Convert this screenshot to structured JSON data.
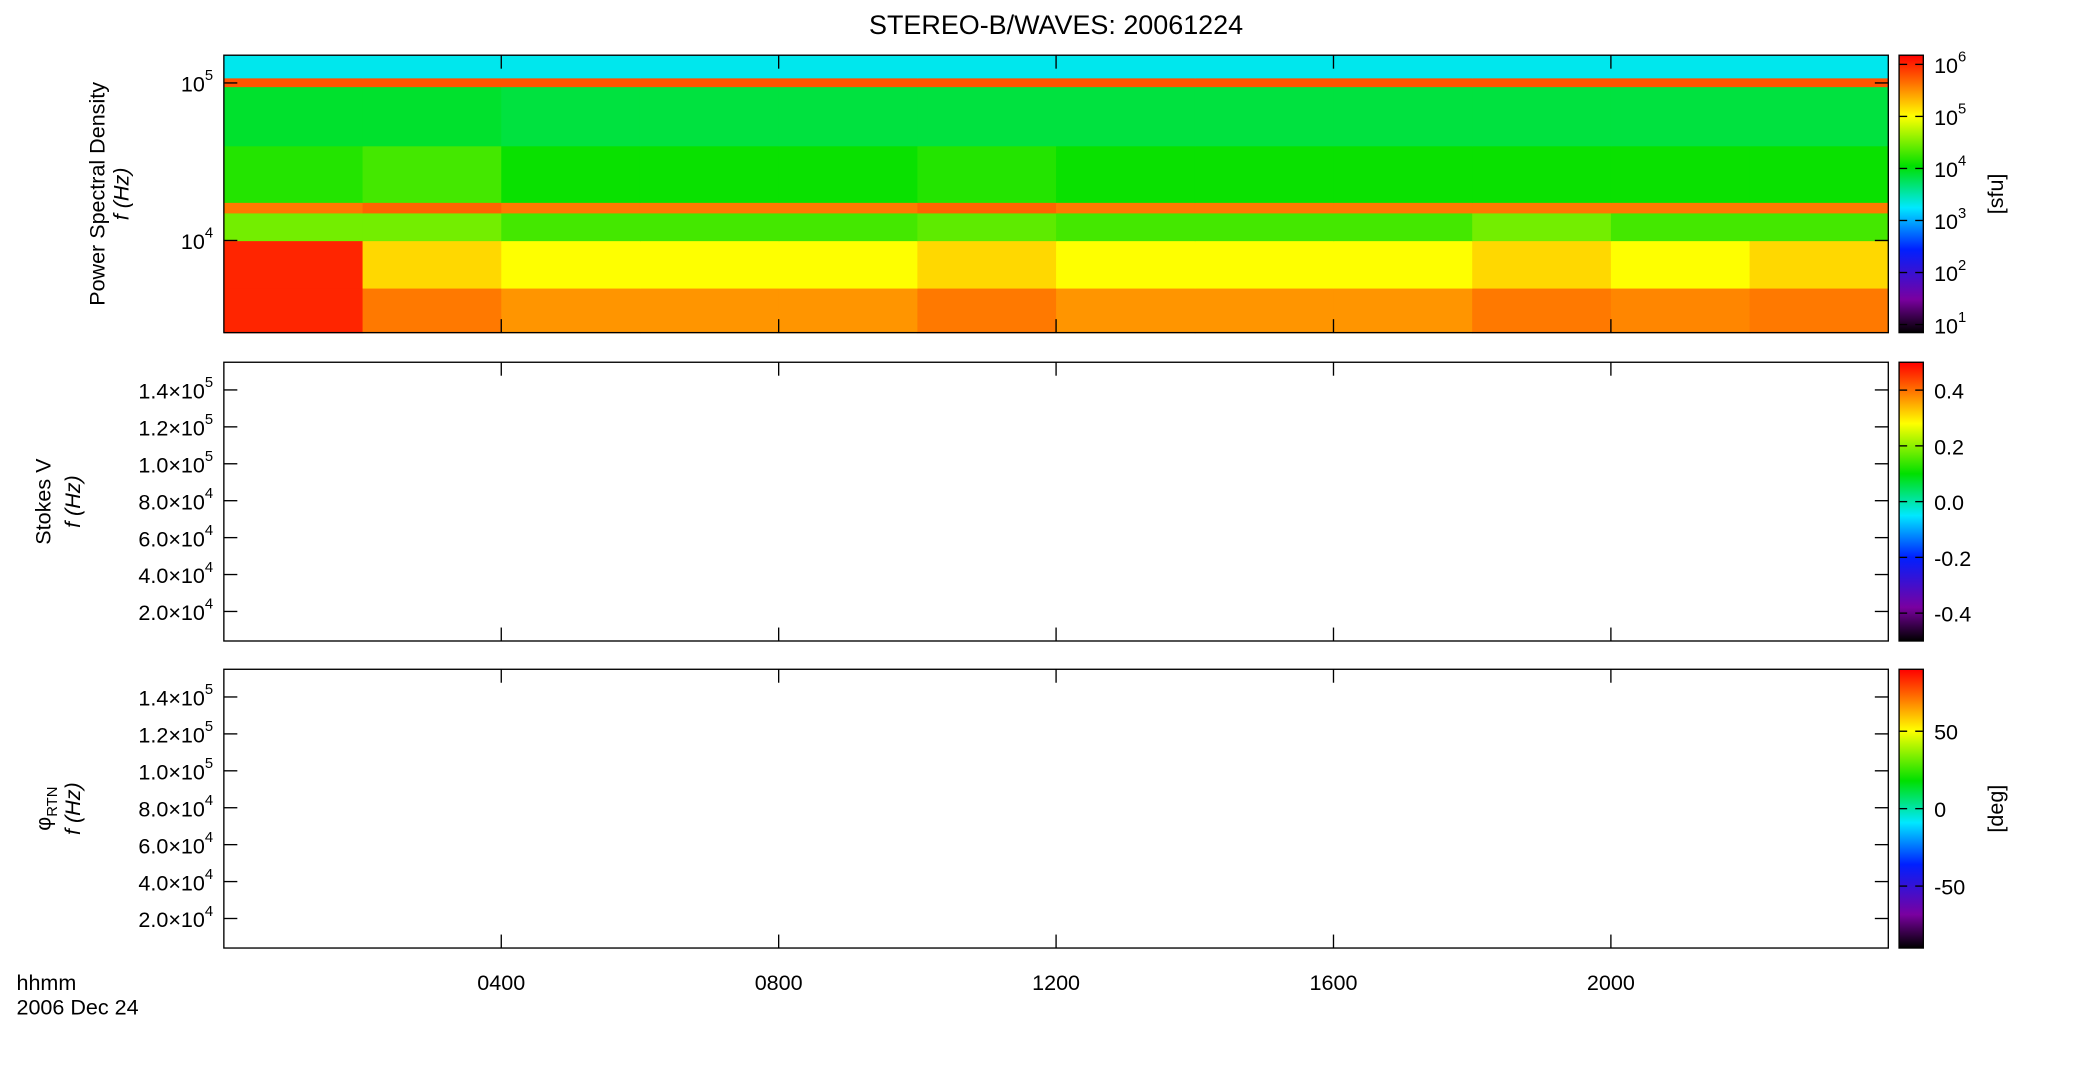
{
  "title": "STEREO-B/WAVES: 20061224",
  "x_label": "hhmm",
  "date": "2006 Dec 24",
  "chart_data": [
    {
      "type": "heatmap",
      "y_label": "Power Spectral Density",
      "y_sublabel": "f (Hz)",
      "ylog": true,
      "ylim": [
        2600,
        150000
      ],
      "yticks": [
        {
          "value": 10000,
          "label": "10^4"
        },
        {
          "value": 100000,
          "label": "10^5"
        }
      ],
      "xlim": [
        0,
        24
      ],
      "xticks": [
        4,
        8,
        12,
        16,
        20
      ],
      "x_bins": [
        0,
        2,
        4,
        6,
        8,
        10,
        12,
        14,
        16,
        18,
        20,
        22,
        24
      ],
      "y_bins": [
        2600,
        5000,
        10000,
        15000,
        17500,
        40000,
        95000,
        108000,
        150000
      ],
      "values": [
        [
          1000000,
          400000,
          300000,
          300000,
          300000,
          400000,
          300000,
          300000,
          300000,
          400000,
          350000,
          400000
        ],
        [
          1000000,
          150000,
          100000,
          100000,
          100000,
          150000,
          100000,
          100000,
          100000,
          150000,
          100000,
          150000
        ],
        [
          30000,
          30000,
          20000,
          20000,
          20000,
          25000,
          20000,
          20000,
          20000,
          30000,
          20000,
          20000
        ],
        [
          400000,
          500000,
          400000,
          400000,
          400000,
          500000,
          400000,
          400000,
          400000,
          400000,
          400000,
          400000
        ],
        [
          15000,
          20000,
          12000,
          12000,
          12000,
          15000,
          12000,
          12000,
          12000,
          12000,
          12000,
          12000
        ],
        [
          8000,
          8000,
          7000,
          7000,
          7000,
          7000,
          7000,
          7000,
          7000,
          7000,
          7000,
          7000
        ],
        [
          600000,
          600000,
          600000,
          600000,
          600000,
          600000,
          600000,
          600000,
          600000,
          600000,
          600000,
          600000
        ],
        [
          2000,
          2000,
          2000,
          2000,
          2000,
          2000,
          2000,
          2000,
          2000,
          2000,
          2000,
          2000
        ]
      ],
      "zlog": true,
      "zlim": [
        7,
        1500000
      ],
      "zticks": [
        {
          "value": 10,
          "label": "10^1"
        },
        {
          "value": 100,
          "label": "10^2"
        },
        {
          "value": 1000,
          "label": "10^3"
        },
        {
          "value": 10000,
          "label": "10^4"
        },
        {
          "value": 100000,
          "label": "10^5"
        },
        {
          "value": 1000000,
          "label": "10^6"
        }
      ],
      "z_label": "[sfu]"
    },
    {
      "type": "heatmap",
      "y_label": "Stokes V",
      "y_sublabel": "f (Hz)",
      "ylim": [
        4000,
        155000
      ],
      "yticks": [
        {
          "value": 20000,
          "label": "2.0×10^4"
        },
        {
          "value": 40000,
          "label": "4.0×10^4"
        },
        {
          "value": 60000,
          "label": "6.0×10^4"
        },
        {
          "value": 80000,
          "label": "8.0×10^4"
        },
        {
          "value": 100000,
          "label": "1.0×10^5"
        },
        {
          "value": 120000,
          "label": "1.2×10^5"
        },
        {
          "value": 140000,
          "label": "1.4×10^5"
        }
      ],
      "xlim": [
        0,
        24
      ],
      "xticks": [
        4,
        8,
        12,
        16,
        20
      ],
      "zlim": [
        -0.5,
        0.5
      ],
      "zticks": [
        -0.4,
        -0.2,
        {
          "value": 0,
          "label": "0.0"
        },
        0.2,
        0.4
      ]
    },
    {
      "type": "heatmap",
      "y_label": "φ_RTN",
      "y_sublabel": "f (Hz)",
      "ylim": [
        4000,
        155000
      ],
      "yticks": [
        {
          "value": 20000,
          "label": "2.0×10^4"
        },
        {
          "value": 40000,
          "label": "4.0×10^4"
        },
        {
          "value": 60000,
          "label": "6.0×10^4"
        },
        {
          "value": 80000,
          "label": "8.0×10^4"
        },
        {
          "value": 100000,
          "label": "1.0×10^5"
        },
        {
          "value": 120000,
          "label": "1.2×10^5"
        },
        {
          "value": 140000,
          "label": "1.4×10^5"
        }
      ],
      "xlim": [
        0,
        24
      ],
      "xticks": [
        {
          "value": 4,
          "label": "0400"
        },
        {
          "value": 8,
          "label": "0800"
        },
        {
          "value": 12,
          "label": "1200"
        },
        {
          "value": 16,
          "label": "1600"
        },
        {
          "value": 20,
          "label": "2000"
        }
      ],
      "zlim": [
        -90,
        90
      ],
      "zticks": [
        -50,
        0,
        50
      ],
      "z_label": "[deg]"
    }
  ]
}
